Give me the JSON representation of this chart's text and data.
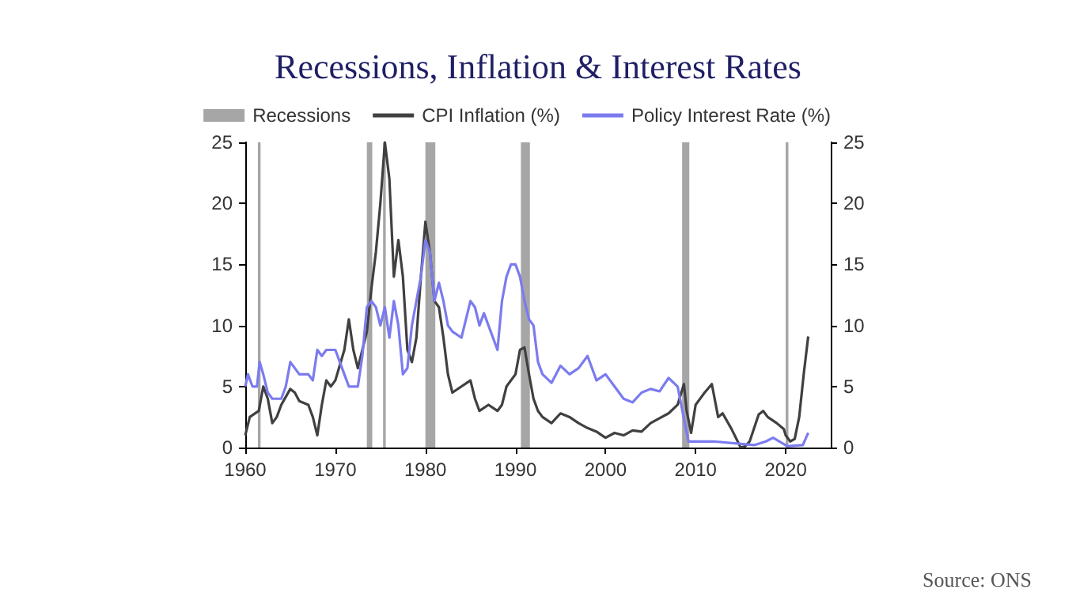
{
  "chart_data": {
    "type": "line",
    "title": "Recessions, Inflation & Interest Rates",
    "xlim": [
      1960,
      2025
    ],
    "xticks": [
      1960,
      1970,
      1980,
      1990,
      2000,
      2010,
      2020
    ],
    "ylim": [
      0,
      25
    ],
    "yticks": [
      0,
      5,
      10,
      15,
      20,
      25
    ],
    "y2lim": [
      0,
      25
    ],
    "y2ticks": [
      0,
      5,
      10,
      15,
      20,
      25
    ],
    "grid": false,
    "legend": "top right",
    "marker": "none",
    "line_style": "solid",
    "bands": [
      {
        "axis": "x",
        "from": 1961.4,
        "to": 1961.7,
        "label": "Recessions",
        "color": "#a6a6a6"
      },
      {
        "axis": "x",
        "from": 1973.5,
        "to": 1974.1,
        "color": "#a6a6a6"
      },
      {
        "axis": "x",
        "from": 1975.3,
        "to": 1975.6,
        "color": "#a6a6a6"
      },
      {
        "axis": "x",
        "from": 1980.0,
        "to": 1981.1,
        "color": "#a6a6a6"
      },
      {
        "axis": "x",
        "from": 1990.6,
        "to": 1991.6,
        "color": "#a6a6a6"
      },
      {
        "axis": "x",
        "from": 2008.5,
        "to": 2009.3,
        "color": "#a6a6a6"
      },
      {
        "axis": "x",
        "from": 2020.0,
        "to": 2020.3,
        "color": "#a6a6a6"
      }
    ],
    "series": [
      {
        "name": "CPI Inflation (%)",
        "color": "#404040",
        "x": [
          1960,
          1960.5,
          1961.5,
          1962,
          1962.5,
          1963,
          1963.5,
          1964,
          1965,
          1965.5,
          1966,
          1967,
          1967.5,
          1968,
          1968.5,
          1969,
          1969.5,
          1970,
          1971,
          1971.5,
          1972,
          1972.5,
          1973,
          1973.5,
          1974,
          1974.5,
          1975,
          1975.5,
          1976,
          1976.5,
          1977,
          1977.5,
          1978,
          1978.5,
          1979,
          1979.5,
          1980,
          1980.5,
          1981,
          1981.5,
          1982,
          1982.5,
          1983,
          1984,
          1985,
          1985.5,
          1986,
          1987,
          1988,
          1988.5,
          1989,
          1990,
          1990.5,
          1991,
          1991.5,
          1992,
          1992.5,
          1993,
          1994,
          1995,
          1996,
          1997,
          1998,
          1999,
          2000,
          2001,
          2002,
          2003,
          2004,
          2005,
          2006,
          2007,
          2008,
          2008.7,
          2009,
          2009.5,
          2010,
          2011,
          2011.8,
          2012.5,
          2013,
          2014,
          2015,
          2015.5,
          2016,
          2017,
          2017.5,
          2018,
          2019,
          2019.8,
          2020,
          2020.5,
          2021,
          2021.5,
          2022,
          2022.5
        ],
        "values": [
          1,
          2.5,
          3,
          5,
          4,
          2,
          2.5,
          3.5,
          4.8,
          4.5,
          3.8,
          3.5,
          2.5,
          1,
          3.5,
          5.5,
          5,
          5.5,
          8,
          10.5,
          8,
          6.5,
          8,
          9.5,
          13,
          16,
          20,
          25,
          22,
          14,
          17,
          14,
          8,
          7,
          9,
          14,
          18.5,
          16,
          12,
          11.5,
          9,
          6,
          4.5,
          5,
          5.5,
          4,
          3,
          3.5,
          3,
          3.5,
          5,
          6,
          8,
          8.2,
          6,
          4,
          3,
          2.5,
          2,
          2.8,
          2.5,
          2,
          1.6,
          1.3,
          0.8,
          1.2,
          1,
          1.4,
          1.3,
          2,
          2.4,
          2.8,
          3.5,
          5.2,
          3,
          1.2,
          3.5,
          4.5,
          5.2,
          2.5,
          2.8,
          1.5,
          0,
          0.1,
          0.5,
          2.7,
          3,
          2.5,
          2,
          1.5,
          1,
          0.5,
          0.7,
          2.5,
          6,
          9.1
        ]
      },
      {
        "name": "Policy Interest Rate (%)",
        "color": "#7b7bf0",
        "x": [
          1960,
          1960.3,
          1960.8,
          1961.3,
          1961.6,
          1962,
          1962.5,
          1963,
          1964,
          1964.5,
          1965,
          1966,
          1967,
          1967.5,
          1968,
          1968.5,
          1969,
          1970,
          1970.5,
          1971,
          1971.5,
          1972.5,
          1973,
          1973.5,
          1974,
          1974.5,
          1975,
          1975.5,
          1976,
          1976.5,
          1977,
          1977.5,
          1978,
          1978.5,
          1979,
          1979.5,
          1980,
          1980.5,
          1981,
          1981.5,
          1982,
          1982.5,
          1983,
          1984,
          1985,
          1985.5,
          1986,
          1986.5,
          1987,
          1987.5,
          1988,
          1988.5,
          1989,
          1989.5,
          1990,
          1990.5,
          1991,
          1991.5,
          1992,
          1992.5,
          1993,
          1994,
          1995,
          1996,
          1997,
          1998,
          1999,
          2000,
          2001,
          2002,
          2003,
          2004,
          2005,
          2006,
          2007,
          2008,
          2008.8,
          2009.2,
          2012,
          2016.5,
          2017.8,
          2018.6,
          2020.2,
          2021.9,
          2022.5
        ],
        "values": [
          5,
          6,
          5,
          5,
          7,
          6,
          4.5,
          4,
          4,
          5,
          7,
          6,
          6,
          5.5,
          8,
          7.5,
          8,
          8,
          7,
          6,
          5,
          5,
          7.5,
          11.5,
          12,
          11.5,
          10,
          11.5,
          9,
          12,
          10,
          6,
          6.5,
          10,
          12,
          14,
          17,
          16,
          12,
          13.5,
          12,
          10,
          9.5,
          9,
          12,
          11.5,
          10,
          11,
          10,
          9,
          8,
          12,
          14,
          15,
          15,
          14,
          12,
          10.5,
          10,
          7,
          6,
          5.3,
          6.7,
          6,
          6.5,
          7.5,
          5.5,
          6,
          5,
          4,
          3.7,
          4.5,
          4.8,
          4.6,
          5.7,
          5,
          2,
          0.5,
          0.5,
          0.2,
          0.5,
          0.8,
          0.1,
          0.2,
          1.2
        ]
      }
    ],
    "annotations": [
      "Source: ONS"
    ]
  }
}
